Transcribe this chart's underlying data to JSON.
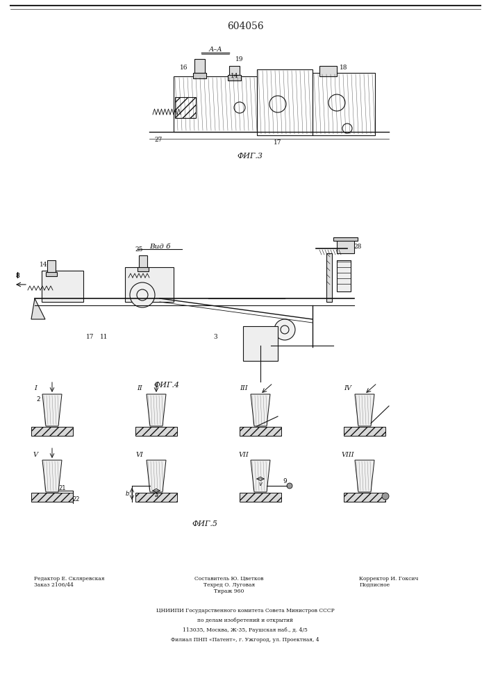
{
  "patent_number": "604056",
  "background_color": "#f5f5f0",
  "page_color": "#ffffff",
  "border_color": "#555555",
  "fig3_label": "ФИГ.3",
  "fig4_label": "ФИГ.4",
  "fig5_label": "ФИГ.5",
  "vidb_label": "Вид б",
  "aa_label": "А–А",
  "staff_line": {
    "left_text": "Редактор Е. Скляревская\nЗаказ 2106/44",
    "center_text": "Составитель Ю. Цветков\nТехред О. Луговая\nТираж 960",
    "right_text": "Корректор И. Гоксич\nПодписное"
  },
  "bottom_text": [
    "ЦНИИПИ Государственного комитета Совета Министров СССР",
    "по делам изобретений и открытий",
    "113035, Москва, Ж-35, Раушская наб., д. 4/5",
    "Филиал ПНП «Патент», г. Ужгород, ул. Проектная, 4"
  ],
  "line_color": "#222222",
  "hatch_color": "#333333",
  "label_fontsize": 7,
  "patent_fontsize": 10
}
